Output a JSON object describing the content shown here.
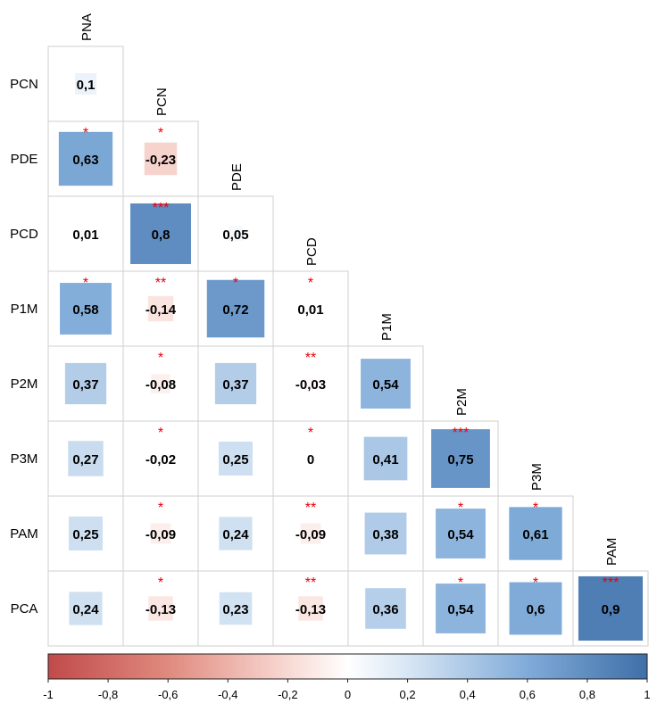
{
  "chart_data": {
    "type": "heatmap",
    "subtype": "lower-triangular correlation matrix",
    "variables": [
      "PNA",
      "PCN",
      "PDE",
      "PCD",
      "P1M",
      "P2M",
      "P3M",
      "PAM",
      "PCA"
    ],
    "row_labels": [
      "PCN",
      "PDE",
      "PCD",
      "P1M",
      "P2M",
      "P3M",
      "PAM",
      "PCA"
    ],
    "column_labels": [
      "PNA",
      "PCN",
      "PDE",
      "PCD",
      "P1M",
      "P2M",
      "P3M",
      "PAM"
    ],
    "cells": [
      [
        {
          "value": 0.1,
          "label": "0,1",
          "stars": ""
        }
      ],
      [
        {
          "value": 0.63,
          "label": "0,63",
          "stars": "*"
        },
        {
          "value": -0.23,
          "label": "-0,23",
          "stars": "*"
        }
      ],
      [
        {
          "value": 0.01,
          "label": "0,01",
          "stars": ""
        },
        {
          "value": 0.8,
          "label": "0,8",
          "stars": "***"
        },
        {
          "value": 0.05,
          "label": "0,05",
          "stars": ""
        }
      ],
      [
        {
          "value": 0.58,
          "label": "0,58",
          "stars": "*"
        },
        {
          "value": -0.14,
          "label": "-0,14",
          "stars": "**"
        },
        {
          "value": 0.72,
          "label": "0,72",
          "stars": "*"
        },
        {
          "value": 0.01,
          "label": "0,01",
          "stars": "*"
        }
      ],
      [
        {
          "value": 0.37,
          "label": "0,37",
          "stars": ""
        },
        {
          "value": -0.08,
          "label": "-0,08",
          "stars": "*"
        },
        {
          "value": 0.37,
          "label": "0,37",
          "stars": ""
        },
        {
          "value": -0.03,
          "label": "-0,03",
          "stars": "**"
        },
        {
          "value": 0.54,
          "label": "0,54",
          "stars": ""
        }
      ],
      [
        {
          "value": 0.27,
          "label": "0,27",
          "stars": ""
        },
        {
          "value": -0.02,
          "label": "-0,02",
          "stars": "*"
        },
        {
          "value": 0.25,
          "label": "0,25",
          "stars": ""
        },
        {
          "value": 0,
          "label": "0",
          "stars": "*"
        },
        {
          "value": 0.41,
          "label": "0,41",
          "stars": ""
        },
        {
          "value": 0.75,
          "label": "0,75",
          "stars": "***"
        }
      ],
      [
        {
          "value": 0.25,
          "label": "0,25",
          "stars": ""
        },
        {
          "value": -0.09,
          "label": "-0,09",
          "stars": "*"
        },
        {
          "value": 0.24,
          "label": "0,24",
          "stars": ""
        },
        {
          "value": -0.09,
          "label": "-0,09",
          "stars": "**"
        },
        {
          "value": 0.38,
          "label": "0,38",
          "stars": ""
        },
        {
          "value": 0.54,
          "label": "0,54",
          "stars": "*"
        },
        {
          "value": 0.61,
          "label": "0,61",
          "stars": "*"
        }
      ],
      [
        {
          "value": 0.24,
          "label": "0,24",
          "stars": ""
        },
        {
          "value": -0.13,
          "label": "-0,13",
          "stars": "*"
        },
        {
          "value": 0.23,
          "label": "0,23",
          "stars": ""
        },
        {
          "value": -0.13,
          "label": "-0,13",
          "stars": "**"
        },
        {
          "value": 0.36,
          "label": "0,36",
          "stars": ""
        },
        {
          "value": 0.54,
          "label": "0,54",
          "stars": "*"
        },
        {
          "value": 0.6,
          "label": "0,6",
          "stars": "*"
        },
        {
          "value": 0.9,
          "label": "0,9",
          "stars": "***"
        }
      ]
    ],
    "color_scale": {
      "range": [
        -1,
        1
      ],
      "ticks": [
        "-1",
        "-0,8",
        "-0,6",
        "-0,4",
        "-0,2",
        "0",
        "0,2",
        "0,4",
        "0,6",
        "0,8",
        "1"
      ],
      "negative_color": "#c14a4a",
      "mid_color": "#ffffff",
      "positive_color": "#3f6fa8"
    },
    "significance_color": "#e8000b",
    "legend_position": "bottom"
  }
}
